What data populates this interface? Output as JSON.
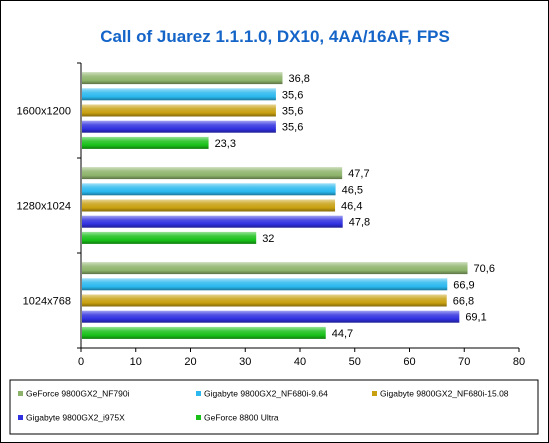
{
  "chart_data": {
    "type": "bar",
    "orientation": "horizontal",
    "title": "Call of Juarez 1.1.1.0, DX10, 4AA/16AF, FPS",
    "categories": [
      "1600x1200",
      "1280x1024",
      "1024x768"
    ],
    "series": [
      {
        "name": "GeForce 9800GX2_NF790i",
        "color": "#8db36a",
        "values": [
          36.8,
          47.7,
          70.6
        ],
        "labels": [
          "36,8",
          "47,7",
          "70,6"
        ]
      },
      {
        "name": "Gigabyte 9800GX2_NF680i-9.64",
        "color": "#2ab8ee",
        "values": [
          35.6,
          46.5,
          66.9
        ],
        "labels": [
          "35,6",
          "46,5",
          "66,9"
        ]
      },
      {
        "name": "Gigabyte 9800GX2_NF680i-15.08",
        "color": "#c8a010",
        "values": [
          35.6,
          46.4,
          66.8
        ],
        "labels": [
          "35,6",
          "46,4",
          "66,8"
        ]
      },
      {
        "name": "Gigabyte 9800GX2_i975X",
        "color": "#3030e0",
        "values": [
          35.6,
          47.8,
          69.1
        ],
        "labels": [
          "35,6",
          "47,8",
          "69,1"
        ]
      },
      {
        "name": "GeForce 8800 Ultra",
        "color": "#18c018",
        "values": [
          23.3,
          32,
          44.7
        ],
        "labels": [
          "23,3",
          "32",
          "44,7"
        ]
      }
    ],
    "xlim": [
      0,
      80
    ],
    "xticks": [
      0,
      10,
      20,
      30,
      40,
      50,
      60,
      70,
      80
    ],
    "grid": false,
    "legend_position": "bottom"
  }
}
